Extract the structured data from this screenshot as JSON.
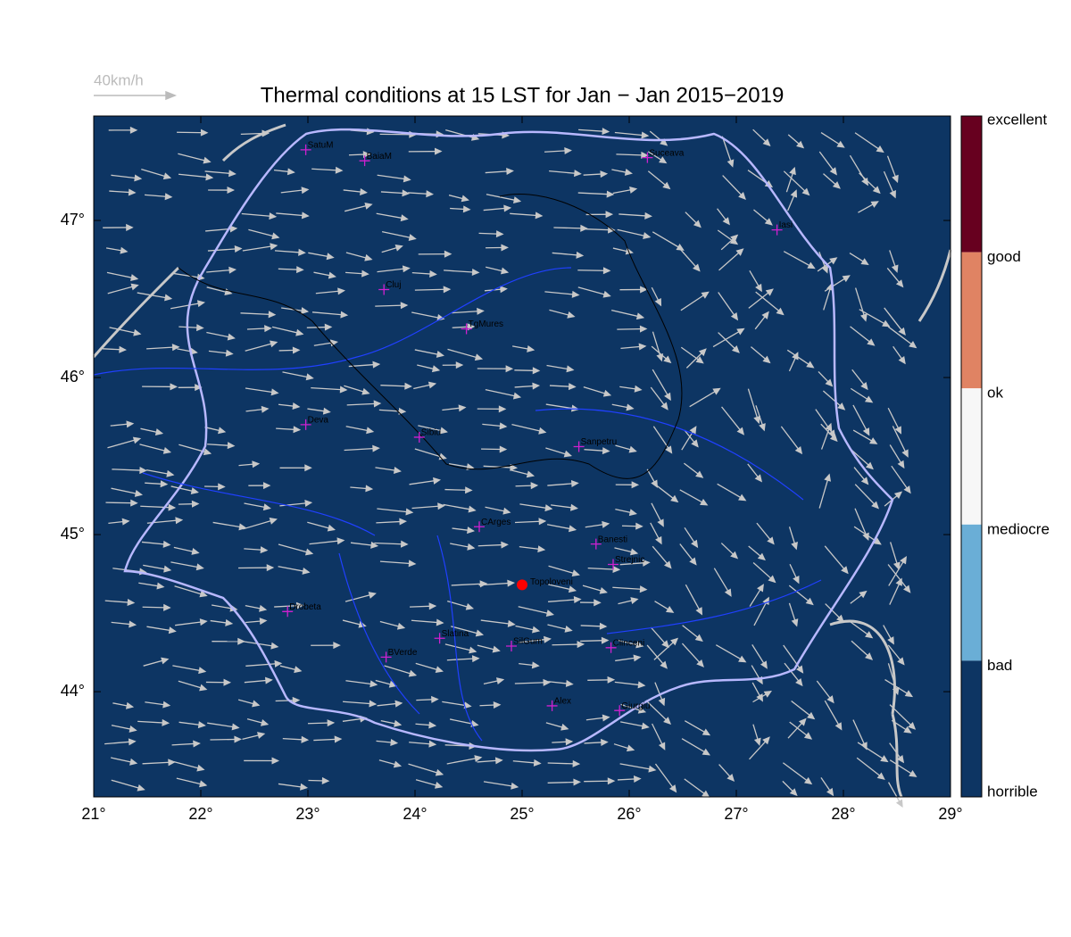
{
  "map": {
    "title": "Thermal conditions at 15 LST for Jan − Jan  2015−2019",
    "reference_arrow": "40km/h",
    "xlim": [
      21,
      29
    ],
    "ylim": [
      43.33,
      47.665
    ],
    "xticks": [
      {
        "value": 21,
        "label": "21°"
      },
      {
        "value": 22,
        "label": "22°"
      },
      {
        "value": 23,
        "label": "23°"
      },
      {
        "value": 24,
        "label": "24°"
      },
      {
        "value": 25,
        "label": "25°"
      },
      {
        "value": 26,
        "label": "26°"
      },
      {
        "value": 27,
        "label": "27°"
      },
      {
        "value": 28,
        "label": "28°"
      },
      {
        "value": 29,
        "label": "29°"
      }
    ],
    "yticks": [
      {
        "value": 44,
        "label": "44°"
      },
      {
        "value": 45,
        "label": "45°"
      },
      {
        "value": 46,
        "label": "46°"
      },
      {
        "value": 47,
        "label": "47°"
      }
    ],
    "background_color": "#0d3563",
    "cities": [
      {
        "name": "SatuM",
        "lon": 22.98,
        "lat": 47.45
      },
      {
        "name": "BaiaM",
        "lon": 23.53,
        "lat": 47.38
      },
      {
        "name": "Suceava",
        "lon": 26.17,
        "lat": 47.4
      },
      {
        "name": "Iasi",
        "lon": 27.38,
        "lat": 46.94
      },
      {
        "name": "Cluj",
        "lon": 23.71,
        "lat": 46.56
      },
      {
        "name": "TgMures",
        "lon": 24.48,
        "lat": 46.31
      },
      {
        "name": "Deva",
        "lon": 22.98,
        "lat": 45.7
      },
      {
        "name": "Sibiu",
        "lon": 24.04,
        "lat": 45.62
      },
      {
        "name": "Sanpetru",
        "lon": 25.53,
        "lat": 45.56
      },
      {
        "name": "CArges",
        "lon": 24.6,
        "lat": 45.05
      },
      {
        "name": "Banesti",
        "lon": 25.69,
        "lat": 44.94
      },
      {
        "name": "Strejnic",
        "lon": 25.85,
        "lat": 44.81
      },
      {
        "name": "Drobeta",
        "lon": 22.81,
        "lat": 44.51
      },
      {
        "name": "Slatina",
        "lon": 24.23,
        "lat": 44.34
      },
      {
        "name": "SilGum",
        "lon": 24.9,
        "lat": 44.29
      },
      {
        "name": "BVerde",
        "lon": 23.73,
        "lat": 44.22
      },
      {
        "name": "Clinceni",
        "lon": 25.83,
        "lat": 44.28
      },
      {
        "name": "Alex",
        "lon": 25.28,
        "lat": 43.91
      },
      {
        "name": "Giurgiu",
        "lon": 25.91,
        "lat": 43.88
      }
    ],
    "site": {
      "name": "Topoloveni",
      "lon": 25.0,
      "lat": 44.68,
      "color": "#ff0000"
    },
    "colorbar": {
      "labels": [
        "excellent",
        "good",
        "ok",
        "mediocre",
        "bad",
        "horrible"
      ],
      "colors": [
        "#67001f",
        "#e08363",
        "#f7f7f7",
        "#6aaed6",
        "#0d3563"
      ]
    }
  }
}
